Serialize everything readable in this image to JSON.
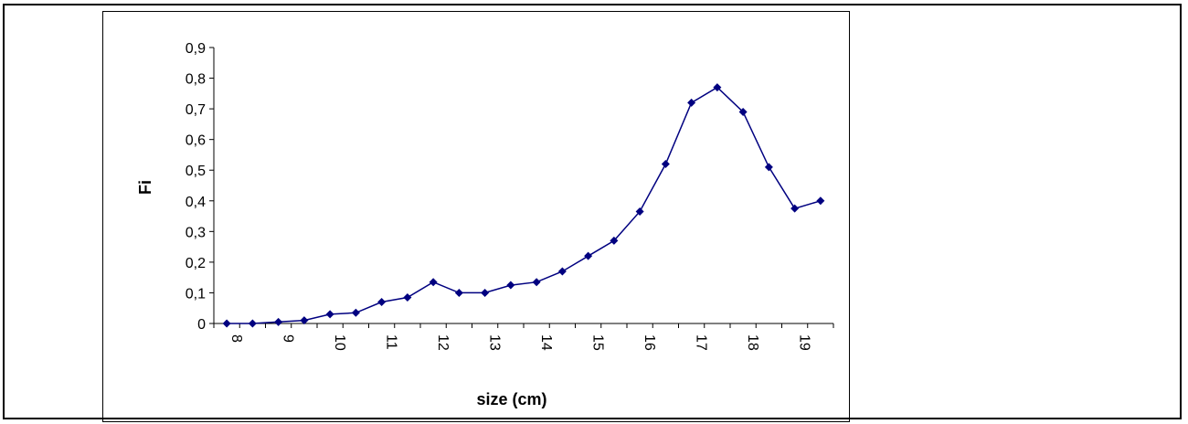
{
  "chart_data": {
    "type": "line",
    "title": "",
    "xlabel": "size (cm)",
    "ylabel": "Fi",
    "ylim": [
      0,
      0.9
    ],
    "yticks": [
      "0",
      "0,1",
      "0,2",
      "0,3",
      "0,4",
      "0,5",
      "0,6",
      "0,7",
      "0,8",
      "0,9"
    ],
    "xticks": [
      "8",
      "9",
      "10",
      "11",
      "12",
      "13",
      "14",
      "15",
      "16",
      "17",
      "18",
      "19"
    ],
    "grid": false,
    "legend": "none",
    "line_color": "#000080",
    "series": [
      {
        "x": [
          8,
          8.5,
          9,
          9.5,
          10,
          10.5,
          11,
          11.5,
          12,
          12.5,
          13,
          13.5,
          14,
          14.5,
          15,
          15.5,
          16,
          16.5,
          17,
          17.5,
          18,
          18.5,
          19,
          19.5
        ],
        "values": [
          0,
          0,
          0.005,
          0.01,
          0.03,
          0.035,
          0.07,
          0.085,
          0.135,
          0.1,
          0.1,
          0.125,
          0.135,
          0.17,
          0.22,
          0.27,
          0.365,
          0.52,
          0.72,
          0.77,
          0.69,
          0.51,
          0.375,
          0.4
        ]
      }
    ]
  }
}
